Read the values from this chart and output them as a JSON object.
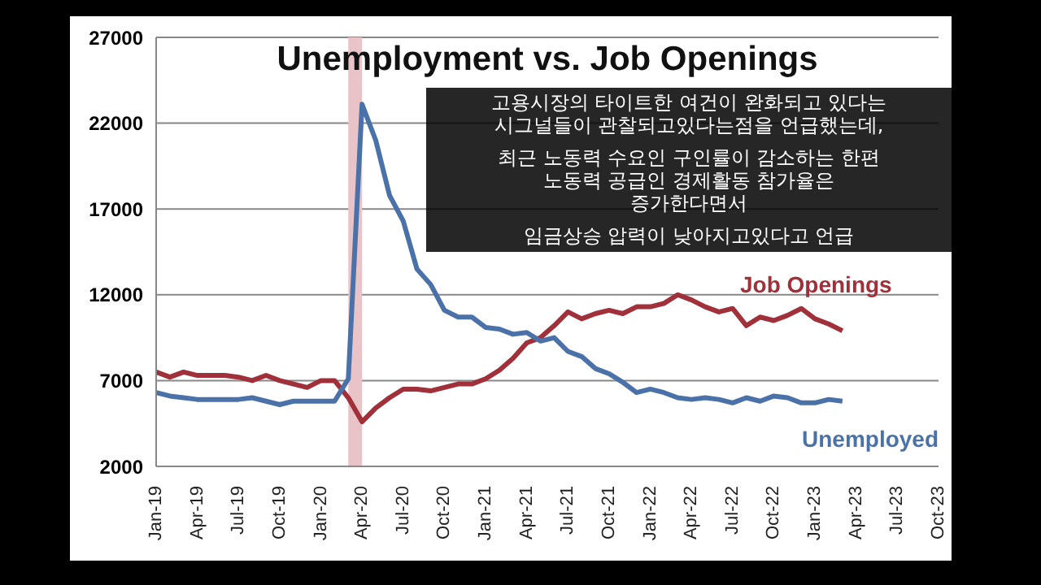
{
  "chart_data": {
    "type": "line",
    "title": "Unemployment vs. Job Openings",
    "x": [
      "2019-01",
      "2019-02",
      "2019-03",
      "2019-04",
      "2019-05",
      "2019-06",
      "2019-07",
      "2019-08",
      "2019-09",
      "2019-10",
      "2019-11",
      "2019-12",
      "2020-01",
      "2020-02",
      "2020-03",
      "2020-04",
      "2020-05",
      "2020-06",
      "2020-07",
      "2020-08",
      "2020-09",
      "2020-10",
      "2020-11",
      "2020-12",
      "2021-01",
      "2021-02",
      "2021-03",
      "2021-04",
      "2021-05",
      "2021-06",
      "2021-07",
      "2021-08",
      "2021-09",
      "2021-10",
      "2021-11",
      "2021-12",
      "2022-01",
      "2022-02",
      "2022-03",
      "2022-04",
      "2022-05",
      "2022-06",
      "2022-07",
      "2022-08",
      "2022-09",
      "2022-10",
      "2022-11",
      "2022-12",
      "2023-01",
      "2023-02",
      "2023-03"
    ],
    "series": [
      {
        "name": "Job Openings",
        "color": "#a0303a",
        "values": [
          7500,
          7200,
          7500,
          7300,
          7300,
          7300,
          7200,
          7000,
          7300,
          7000,
          6800,
          6600,
          7000,
          7000,
          6000,
          4600,
          5400,
          6000,
          6500,
          6500,
          6400,
          6600,
          6800,
          6800,
          7100,
          7600,
          8300,
          9200,
          9500,
          10200,
          11000,
          10600,
          10900,
          11100,
          10900,
          11300,
          11300,
          11500,
          12000,
          11700,
          11300,
          11000,
          11200,
          10200,
          10700,
          10500,
          10800,
          11200,
          10600,
          10300,
          9900
        ]
      },
      {
        "name": "Unemployed",
        "color": "#4a72a8",
        "values": [
          6300,
          6100,
          6000,
          5900,
          5900,
          5900,
          5900,
          6000,
          5800,
          5600,
          5800,
          5800,
          5800,
          5800,
          7100,
          23100,
          21000,
          17800,
          16300,
          13500,
          12600,
          11100,
          10700,
          10700,
          10100,
          10000,
          9700,
          9800,
          9300,
          9500,
          8700,
          8400,
          7700,
          7400,
          6900,
          6300,
          6500,
          6300,
          6000,
          5900,
          6000,
          5900,
          5700,
          6000,
          5800,
          6100,
          6000,
          5700,
          5700,
          5900,
          5800
        ]
      }
    ],
    "xlim": [
      "2019-01",
      "2023-10"
    ],
    "xticks": [
      {
        "value": "2019-01",
        "label": "Jan-19"
      },
      {
        "value": "2019-04",
        "label": "Apr-19"
      },
      {
        "value": "2019-07",
        "label": "Jul-19"
      },
      {
        "value": "2019-10",
        "label": "Oct-19"
      },
      {
        "value": "2020-01",
        "label": "Jan-20"
      },
      {
        "value": "2020-04",
        "label": "Apr-20"
      },
      {
        "value": "2020-07",
        "label": "Jul-20"
      },
      {
        "value": "2020-10",
        "label": "Oct-20"
      },
      {
        "value": "2021-01",
        "label": "Jan-21"
      },
      {
        "value": "2021-04",
        "label": "Apr-21"
      },
      {
        "value": "2021-07",
        "label": "Jul-21"
      },
      {
        "value": "2021-10",
        "label": "Oct-21"
      },
      {
        "value": "2022-01",
        "label": "Jan-22"
      },
      {
        "value": "2022-04",
        "label": "Apr-22"
      },
      {
        "value": "2022-07",
        "label": "Jul-22"
      },
      {
        "value": "2022-10",
        "label": "Oct-22"
      },
      {
        "value": "2023-01",
        "label": "Jan-23"
      },
      {
        "value": "2023-04",
        "label": "Apr-23"
      },
      {
        "value": "2023-07",
        "label": "Jul-23"
      },
      {
        "value": "2023-10",
        "label": "Oct-23"
      }
    ],
    "ylim": [
      2000,
      27000
    ],
    "yticks": [
      2000,
      7000,
      12000,
      17000,
      22000,
      27000
    ],
    "grid": "y",
    "legend": false,
    "marker": "none",
    "line_style": "solid",
    "bands": [
      {
        "axis": "x",
        "from": "2020-03",
        "to": "2020-04",
        "color": "#e8c4c8"
      }
    ],
    "annotations": [
      "고용시장의 타이트한 여건이 완화되고 있다는\n시그널들이 관찰되고있다는점을 언급했는데,",
      "최근 노동력 수요인 구인률이 감소하는 한편\n노동력 공급인 경제활동 참가율은\n증가한다면서",
      "임금상승 압력이 낮아지고있다고 언급"
    ]
  }
}
